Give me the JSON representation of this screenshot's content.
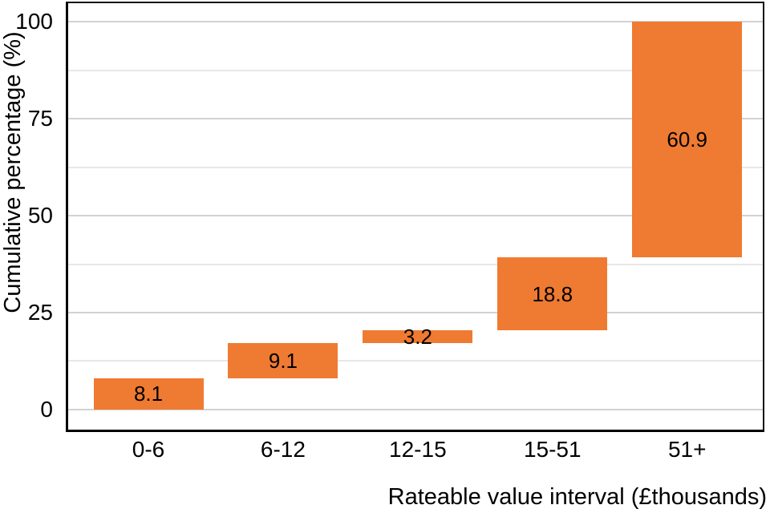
{
  "chart_data": {
    "type": "bar",
    "subtype": "waterfall",
    "title": "",
    "xlabel": "Rateable value interval (£thousands)",
    "ylabel": "Cumulative percentage (%)",
    "categories": [
      "0-6",
      "6-12",
      "12-15",
      "15-51",
      "51+"
    ],
    "segments": [
      {
        "category": "0-6",
        "start": 0,
        "end": 8.1,
        "value": 8.1,
        "label": "8.1"
      },
      {
        "category": "6-12",
        "start": 8.1,
        "end": 17.2,
        "value": 9.1,
        "label": "9.1"
      },
      {
        "category": "12-15",
        "start": 17.2,
        "end": 20.4,
        "value": 3.2,
        "label": "3.2"
      },
      {
        "category": "15-51",
        "start": 20.4,
        "end": 39.2,
        "value": 18.8,
        "label": "18.8"
      },
      {
        "category": "51+",
        "start": 39.2,
        "end": 100.1,
        "value": 60.9,
        "label": "60.9"
      }
    ],
    "y_ticks": [
      {
        "label": "0",
        "value": 0
      },
      {
        "label": "25",
        "value": 25
      },
      {
        "label": "50",
        "value": 50
      },
      {
        "label": "75",
        "value": 75
      },
      {
        "label": "100",
        "value": 100
      }
    ],
    "gridlines": [
      {
        "value": 0,
        "major": true
      },
      {
        "value": 12.5,
        "major": false
      },
      {
        "value": 25,
        "major": true
      },
      {
        "value": 37.5,
        "major": false
      },
      {
        "value": 50,
        "major": true
      },
      {
        "value": 62.5,
        "major": false
      },
      {
        "value": 75,
        "major": true
      },
      {
        "value": 87.5,
        "major": false
      },
      {
        "value": 100,
        "major": true
      }
    ],
    "ylim": [
      -5.2,
      104.8
    ],
    "grid": "on",
    "legend": "none",
    "colors": {
      "bar": "#EF7A31",
      "bar_label": "#000000",
      "axis_line": "#000000",
      "gridline_major": "#d2d2d2",
      "gridline_minor": "#e7e7e7",
      "background": "#ffffff"
    }
  }
}
